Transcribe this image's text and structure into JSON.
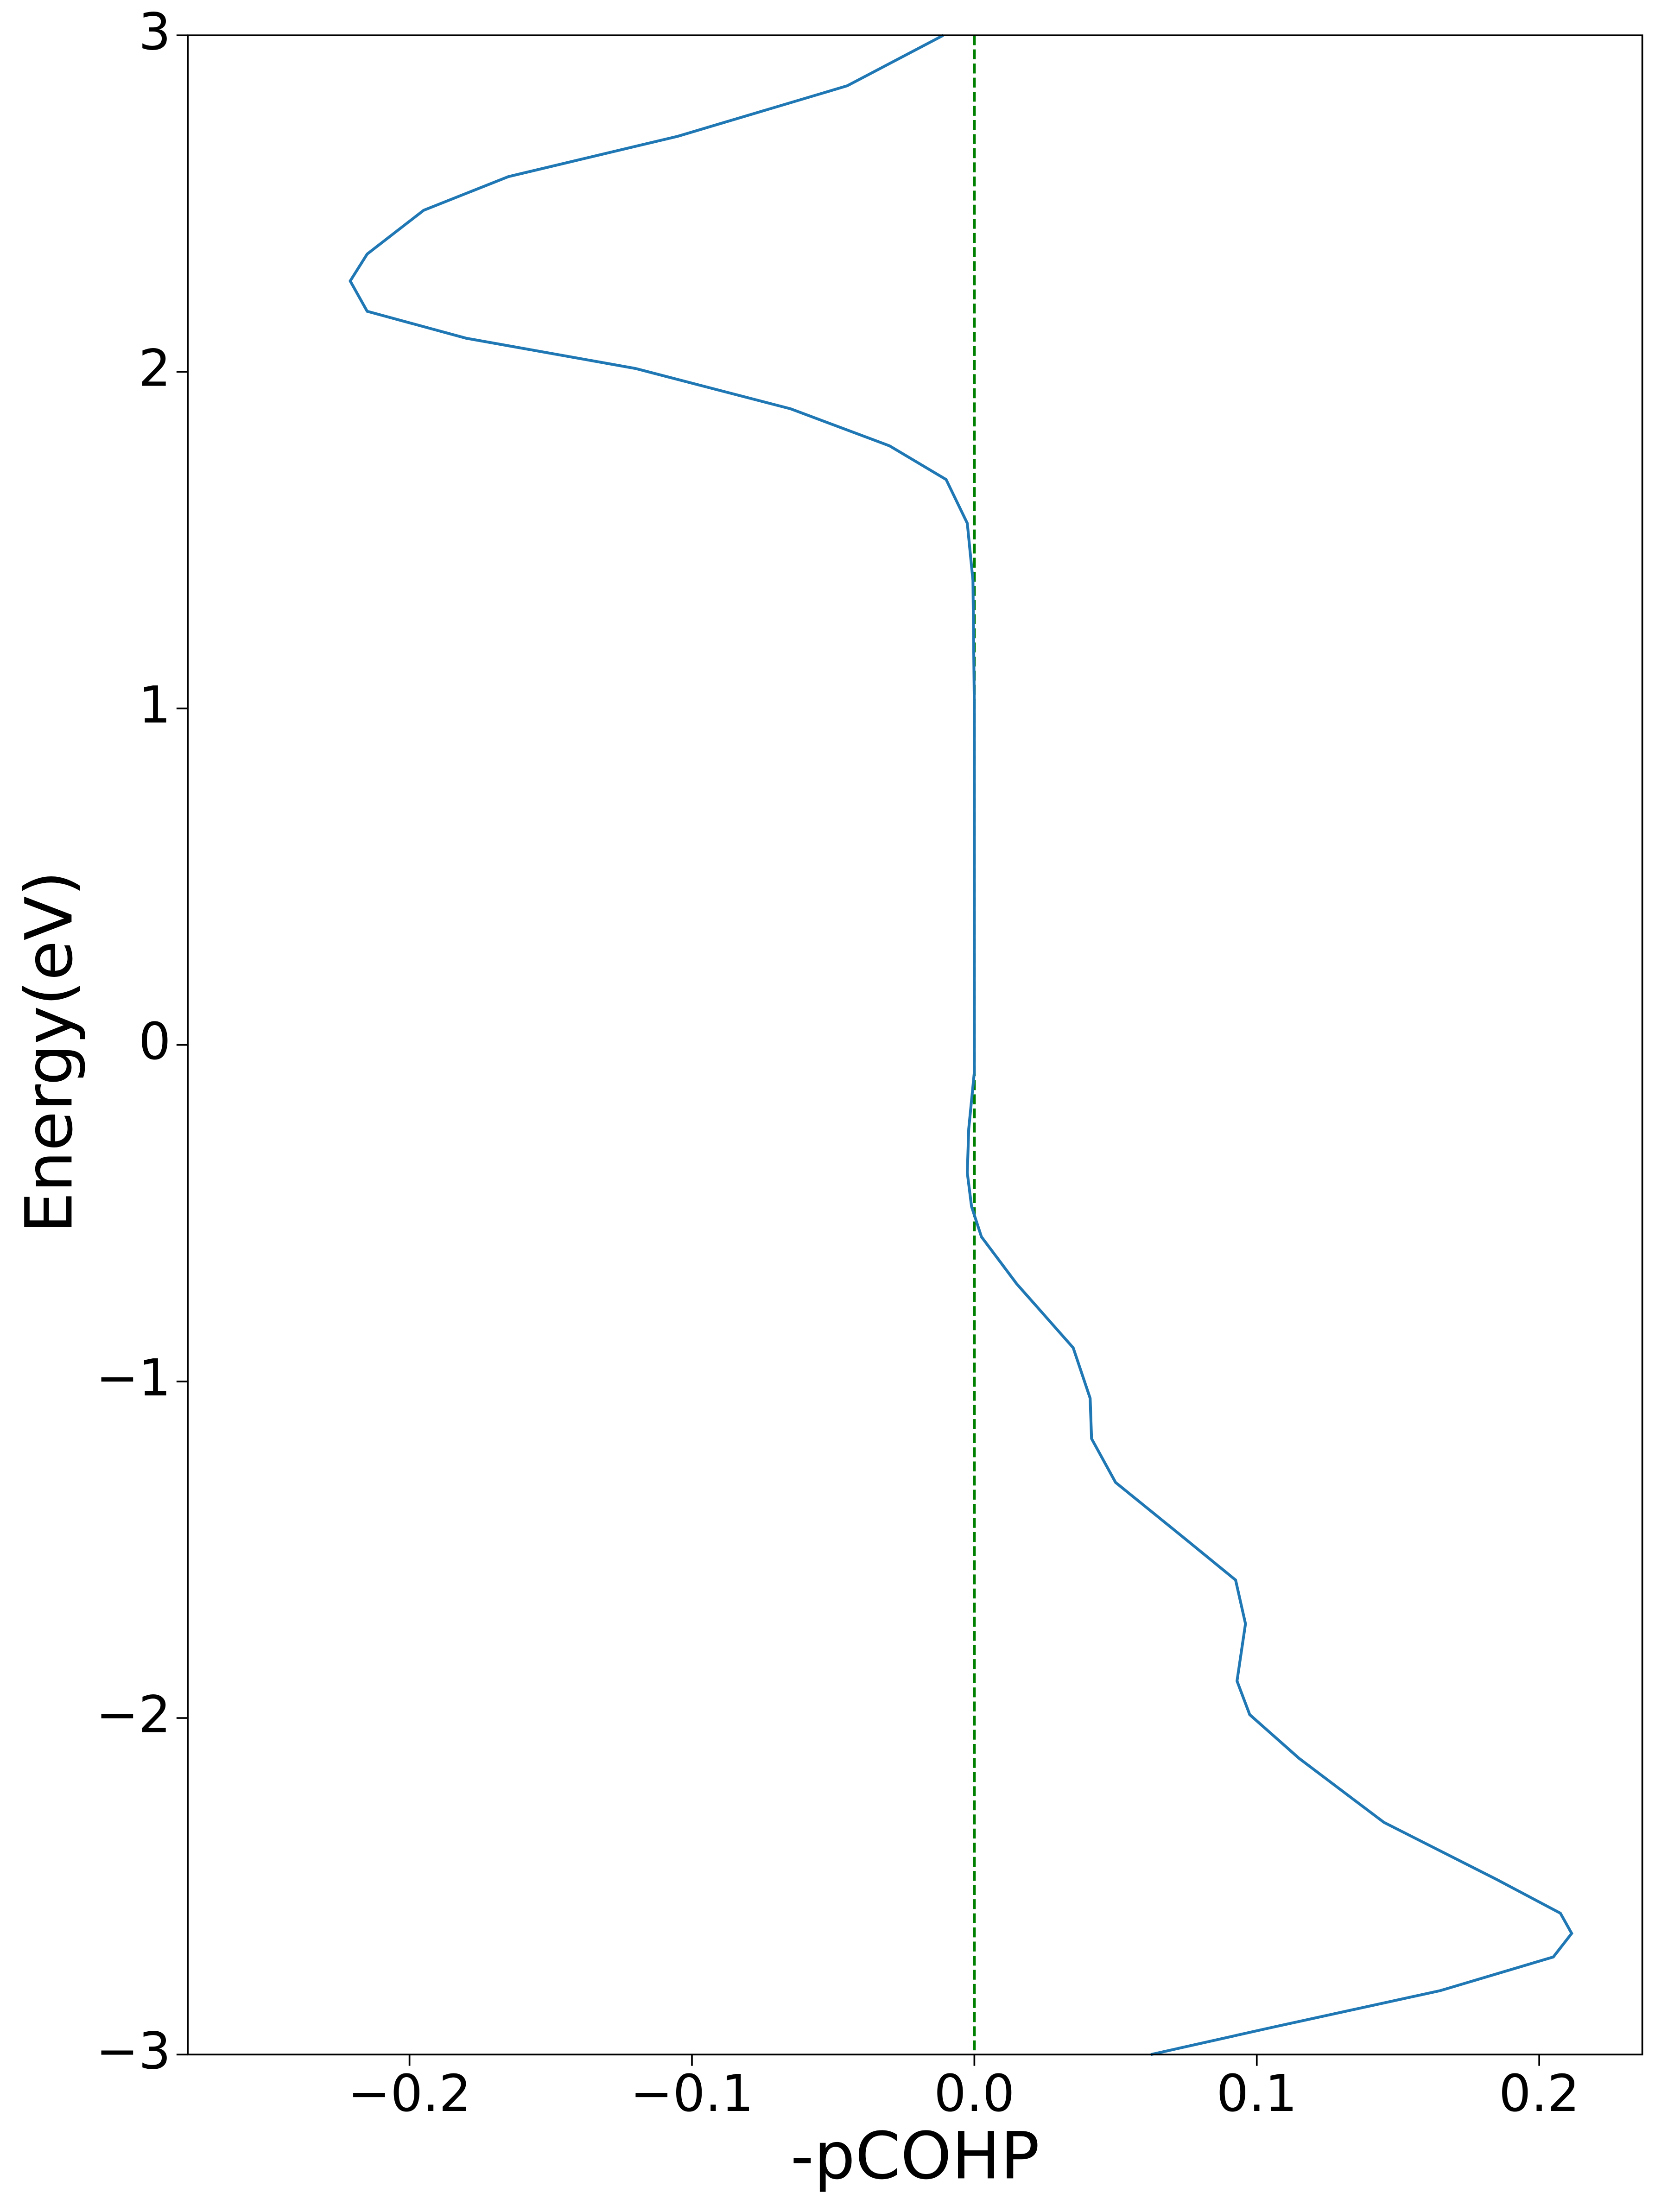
{
  "chart_data": {
    "type": "line",
    "orientation": "vertical",
    "xlabel": "-pCOHP",
    "ylabel": "Energy(eV)",
    "y": [
      3.0,
      2.85,
      2.7,
      2.58,
      2.48,
      2.35,
      2.27,
      2.18,
      2.1,
      2.01,
      1.89,
      1.78,
      1.68,
      1.55,
      1.38,
      1.0,
      -0.08,
      -0.25,
      -0.38,
      -0.48,
      -0.57,
      -0.71,
      -0.9,
      -1.05,
      -1.17,
      -1.3,
      -1.47,
      -1.59,
      -1.72,
      -1.89,
      -1.99,
      -2.12,
      -2.31,
      -2.48,
      -2.58,
      -2.64,
      -2.71,
      -2.81,
      -2.92,
      -3.0
    ],
    "series": [
      {
        "color": "#1f77b4",
        "values": [
          -0.011,
          -0.045,
          -0.105,
          -0.165,
          -0.195,
          -0.215,
          -0.221,
          -0.215,
          -0.18,
          -0.12,
          -0.065,
          -0.03,
          -0.01,
          -0.0025,
          -0.0005,
          0,
          0,
          -0.002,
          -0.0025,
          -0.001,
          0.0025,
          0.015,
          0.035,
          0.041,
          0.0415,
          0.05,
          0.075,
          0.0925,
          0.096,
          0.093,
          0.0975,
          0.115,
          0.145,
          0.185,
          0.2075,
          0.2115,
          0.205,
          0.165,
          0.105,
          0.0625
        ]
      }
    ],
    "reference_line": {
      "x": 0,
      "color": "green",
      "dashed": true
    },
    "xlim": [
      -0.2785,
      0.2365
    ],
    "ylim": [
      -3,
      3
    ],
    "xticks": [
      {
        "value": -0.2,
        "label": "−0.2"
      },
      {
        "value": -0.1,
        "label": "−0.1"
      },
      {
        "value": 0.0,
        "label": "0.0"
      },
      {
        "value": 0.1,
        "label": "0.1"
      },
      {
        "value": 0.2,
        "label": "0.2"
      }
    ],
    "yticks": [
      {
        "value": -3,
        "label": "−3"
      },
      {
        "value": -2,
        "label": "−2"
      },
      {
        "value": -1,
        "label": "−1"
      },
      0,
      1,
      2,
      3
    ],
    "grid": false
  }
}
